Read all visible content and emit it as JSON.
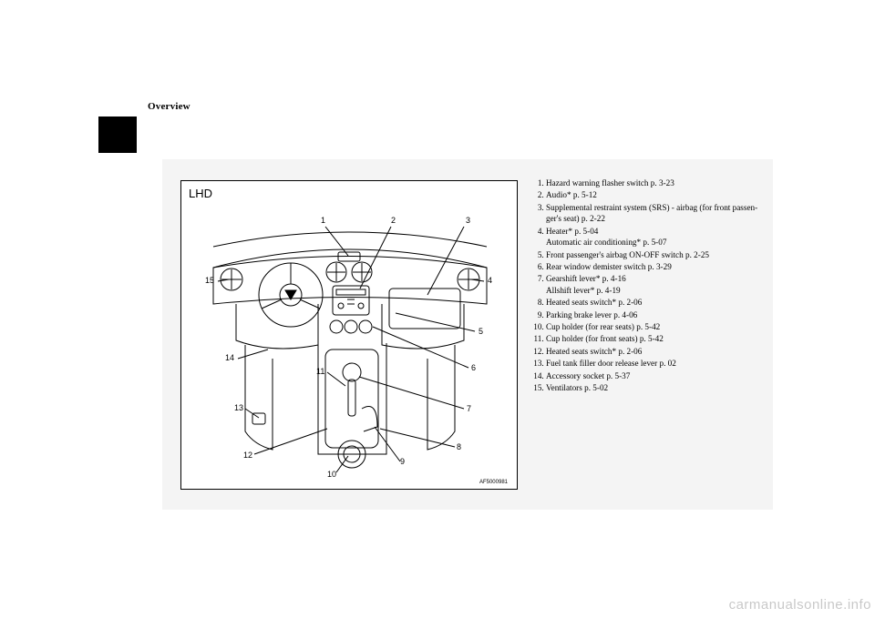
{
  "header": {
    "title": "Overview"
  },
  "figure": {
    "label": "LHD",
    "code": "AF5000981",
    "callouts": {
      "n1": "1",
      "n2": "2",
      "n3": "3",
      "n4": "4",
      "n5": "5",
      "n6": "6",
      "n7": "7",
      "n8": "8",
      "n9": "9",
      "n10": "10",
      "n11": "11",
      "n12": "12",
      "n13": "13",
      "n14": "14",
      "n15": "15"
    },
    "colors": {
      "stroke": "#000000",
      "fill": "#ffffff",
      "bg_box": "#f4f4f4"
    }
  },
  "legend": {
    "items": [
      {
        "n": "1",
        "text": "Hazard warning flasher switch p. 3-23"
      },
      {
        "n": "2",
        "text": "Audio* p. 5-12"
      },
      {
        "n": "3",
        "text": "Supplemental restraint system (SRS) - airbag (for front passen-",
        "cont": "ger's seat) p. 2-22"
      },
      {
        "n": "4",
        "text": "Heater* p. 5-04",
        "sub": "Automatic air conditioning* p. 5-07"
      },
      {
        "n": "5",
        "text": "Front passenger's airbag ON-OFF switch p. 2-25"
      },
      {
        "n": "6",
        "text": "Rear window demister switch p. 3-29"
      },
      {
        "n": "7",
        "text": "Gearshift lever* p. 4-16",
        "sub": "Allshift lever* p. 4-19"
      },
      {
        "n": "8",
        "text": "Heated seats switch* p. 2-06"
      },
      {
        "n": "9",
        "text": "Parking brake lever p. 4-06"
      },
      {
        "n": "10",
        "text": "Cup holder (for rear seats) p. 5-42"
      },
      {
        "n": "11",
        "text": "Cup holder (for front seats) p. 5-42"
      },
      {
        "n": "12",
        "text": "Heated seats switch* p. 2-06"
      },
      {
        "n": "13",
        "text": "Fuel tank filler door release lever p. 02"
      },
      {
        "n": "14",
        "text": "Accessory socket p. 5-37"
      },
      {
        "n": "15",
        "text": "Ventilators p. 5-02"
      }
    ]
  },
  "watermark": "carmanualsonline.info"
}
